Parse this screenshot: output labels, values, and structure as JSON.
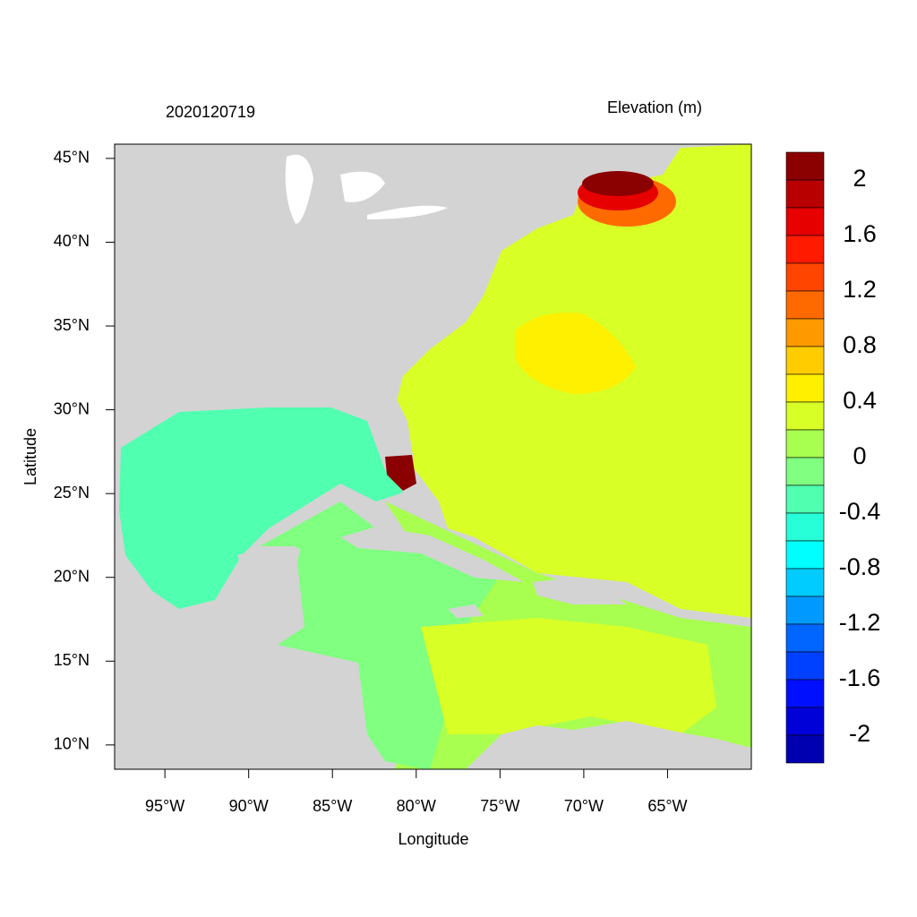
{
  "map": {
    "title": "2020120719",
    "legend_title": "Elevation (m)",
    "x_label": "Longitude",
    "y_label": "Latitude",
    "xlim": [
      -98,
      -60
    ],
    "ylim": [
      8.55,
      45.85
    ],
    "xticks": [
      {
        "value": -95,
        "label": "95°W"
      },
      {
        "value": -90,
        "label": "90°W"
      },
      {
        "value": -85,
        "label": "85°W"
      },
      {
        "value": -80,
        "label": "80°W"
      },
      {
        "value": -75,
        "label": "75°W"
      },
      {
        "value": -70,
        "label": "70°W"
      },
      {
        "value": -65,
        "label": "65°W"
      }
    ],
    "yticks": [
      {
        "value": 10,
        "label": "10°N"
      },
      {
        "value": 15,
        "label": "15°N"
      },
      {
        "value": 20,
        "label": "20°N"
      },
      {
        "value": 25,
        "label": "25°N"
      },
      {
        "value": 30,
        "label": "30°N"
      },
      {
        "value": 35,
        "label": "35°N"
      },
      {
        "value": 40,
        "label": "40°N"
      },
      {
        "value": 45,
        "label": "45°N"
      }
    ],
    "colorbar": {
      "levels": [
        2.2,
        2,
        1.8,
        1.6,
        1.4,
        1.2,
        1,
        0.8,
        0.6,
        0.4,
        0.2,
        0,
        -0.2,
        -0.4,
        -0.6,
        -0.8,
        -1,
        -1.2,
        -1.4,
        -1.6,
        -1.8,
        -2,
        -2.2
      ],
      "colors": [
        "#8b0000",
        "#b80000",
        "#e60000",
        "#ff1a00",
        "#ff4500",
        "#ff6a00",
        "#ff9900",
        "#ffcc00",
        "#fff000",
        "#d8ff26",
        "#a8ff50",
        "#80ff80",
        "#50ffb0",
        "#26ffd8",
        "#00ffff",
        "#00ccff",
        "#0099ff",
        "#0066ff",
        "#0040ff",
        "#0010ff",
        "#0000d8",
        "#0000b0"
      ],
      "labels": [
        2,
        1.6,
        1.2,
        0.8,
        0.4,
        0,
        -0.4,
        -0.8,
        -1.2,
        -1.6,
        -2
      ]
    }
  }
}
